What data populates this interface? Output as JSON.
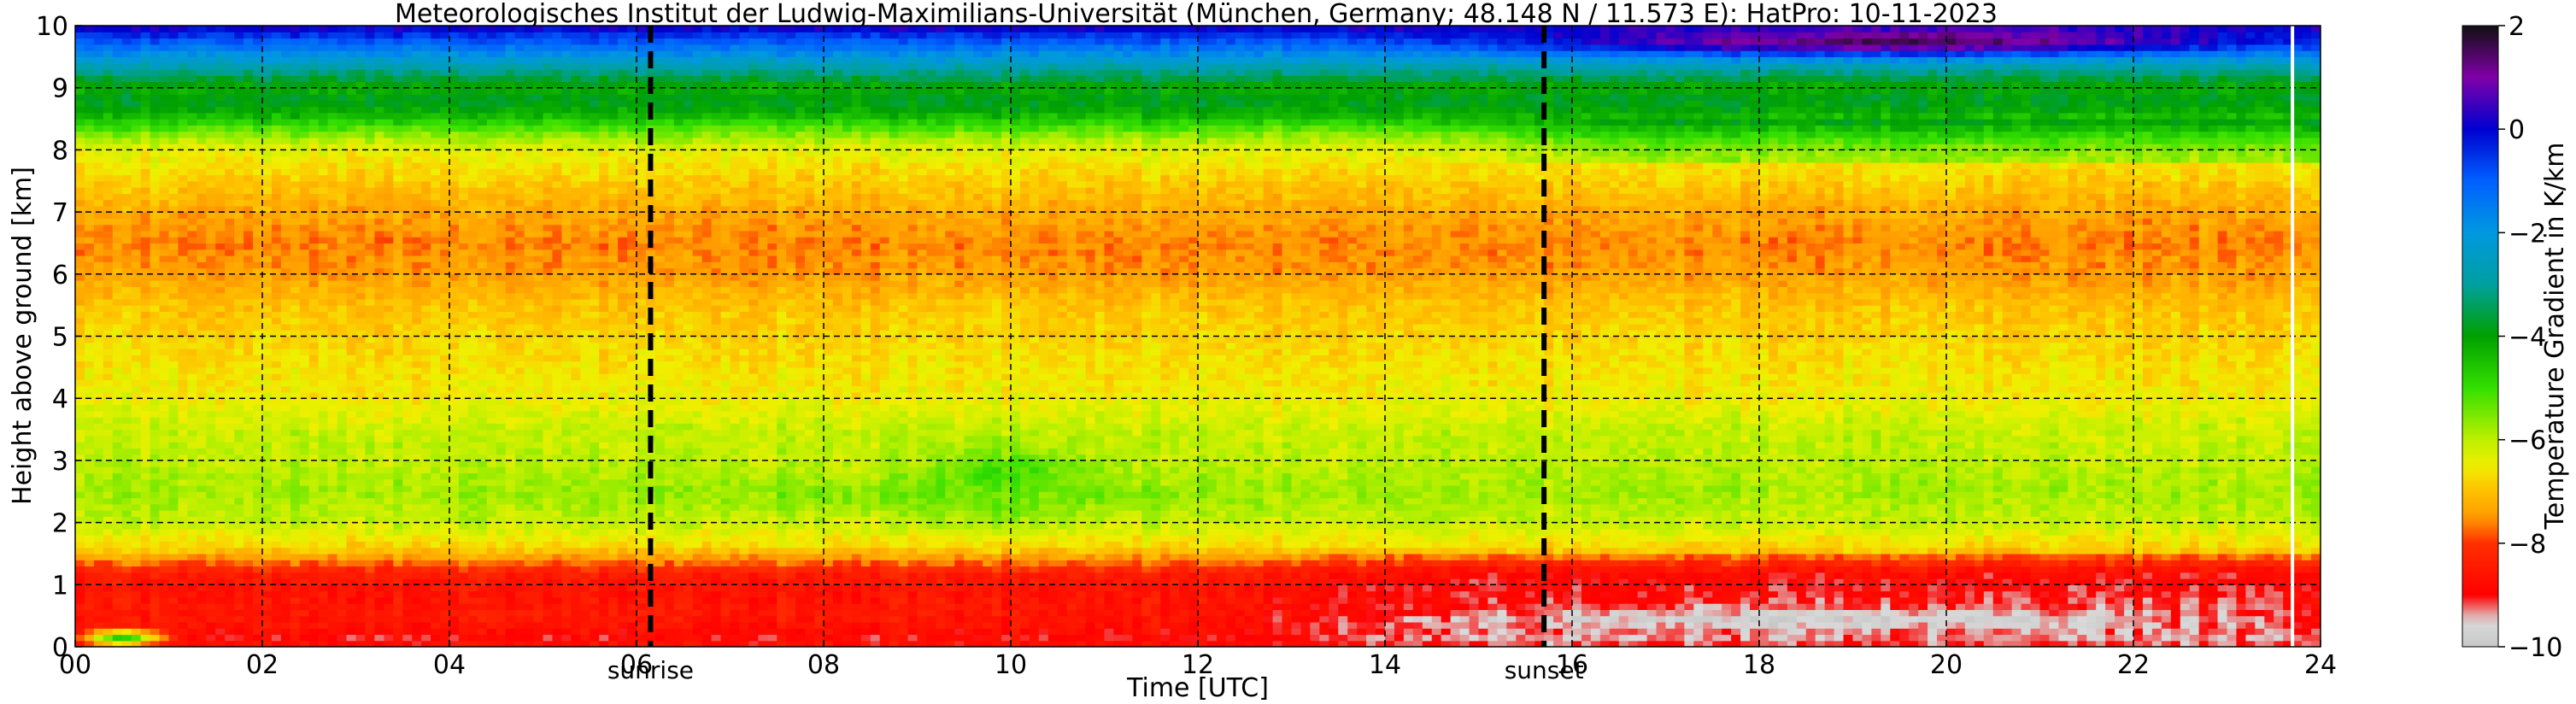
{
  "chart_data": {
    "type": "heatmap",
    "title": "Meteorologisches Institut der Ludwig-Maximilians-Universität (München, Germany; 48.148 N / 11.573 E):    HatPro: 10-11-2023",
    "xlabel": "Time [UTC]",
    "ylabel": "Height above ground [km]",
    "xlim": [
      0,
      24
    ],
    "ylim": [
      0,
      10
    ],
    "x_ticks": [
      "00",
      "02",
      "04",
      "06",
      "08",
      "10",
      "12",
      "14",
      "16",
      "18",
      "20",
      "22",
      "24"
    ],
    "y_ticks": [
      "0",
      "1",
      "2",
      "3",
      "4",
      "5",
      "6",
      "7",
      "8",
      "9",
      "10"
    ],
    "grid": true,
    "colorbar": {
      "label": "Temperature Gradient in K/km",
      "range": [
        -10,
        2
      ],
      "ticks": [
        "2",
        "0",
        "−2",
        "−4",
        "−6",
        "−8",
        "−10"
      ],
      "stops": [
        {
          "value": -10,
          "color": "#c8c8c8"
        },
        {
          "value": -9.5,
          "color": "#d9d9d9"
        },
        {
          "value": -9,
          "color": "#ff0000"
        },
        {
          "value": -8,
          "color": "#ff3000"
        },
        {
          "value": -7.5,
          "color": "#ff9a00"
        },
        {
          "value": -7,
          "color": "#ffc000"
        },
        {
          "value": -6.5,
          "color": "#f0f000"
        },
        {
          "value": -6,
          "color": "#bdf000"
        },
        {
          "value": -5,
          "color": "#33e000"
        },
        {
          "value": -4,
          "color": "#00a000"
        },
        {
          "value": -3,
          "color": "#00a0a0"
        },
        {
          "value": -2,
          "color": "#0098e0"
        },
        {
          "value": -1,
          "color": "#0060ff"
        },
        {
          "value": 0,
          "color": "#0000d0"
        },
        {
          "value": 1,
          "color": "#8000a8"
        },
        {
          "value": 2,
          "color": "#101010"
        }
      ]
    },
    "vertical_lines": [
      {
        "x": 6.15,
        "label": "sunrise",
        "style": "dashed",
        "color": "#000000"
      },
      {
        "x": 15.7,
        "label": "sunset",
        "style": "dashed",
        "color": "#000000"
      },
      {
        "x": 23.7,
        "label": "",
        "style": "solid",
        "color": "#ffffff"
      }
    ],
    "gradient_profile": {
      "heights_km": [
        0,
        0.1,
        0.2,
        0.5,
        0.8,
        1.0,
        1.2,
        1.4,
        1.6,
        2.0,
        2.5,
        3.0,
        3.5,
        4.0,
        5.0,
        5.5,
        6.0,
        6.5,
        7.0,
        7.5,
        8.0,
        8.2,
        8.4,
        8.6,
        8.8,
        9.0,
        9.3,
        9.5,
        9.7,
        9.9,
        10.0
      ],
      "values_K_per_km": [
        -8.5,
        -9.0,
        -8.8,
        -8.5,
        -8.6,
        -8.6,
        -8.4,
        -7.6,
        -6.8,
        -6.1,
        -5.8,
        -6.0,
        -6.1,
        -6.5,
        -6.8,
        -7.0,
        -7.4,
        -7.6,
        -7.3,
        -6.9,
        -6.4,
        -5.8,
        -5.0,
        -4.2,
        -3.8,
        -4.2,
        -3.0,
        -2.0,
        -1.2,
        -0.3,
        0.3
      ]
    },
    "features": [
      {
        "name": "near-surface inversion",
        "t_range": [
          13.0,
          24.0
        ],
        "h_range": [
          0.2,
          0.7
        ],
        "value_K_per_km": -9.8
      },
      {
        "name": "green cell at 3 km",
        "t_range": [
          9.0,
          11.0
        ],
        "h_range": [
          2.0,
          3.3
        ],
        "value_K_per_km": -5.0
      },
      {
        "name": "green streak at 2.4 km",
        "t_range": [
          5.5,
          13.0
        ],
        "h_range": [
          2.2,
          2.7
        ],
        "value_K_per_km": -5.5
      },
      {
        "name": "green surface spots",
        "t_range": [
          0.0,
          1.0
        ],
        "h_range": [
          0.0,
          0.3
        ],
        "value_K_per_km": -5.0
      },
      {
        "name": "stable layer at top",
        "t_range": [
          15.0,
          24.0
        ],
        "h_range": [
          9.5,
          10.0
        ],
        "value_K_per_km": 1.5
      }
    ]
  }
}
